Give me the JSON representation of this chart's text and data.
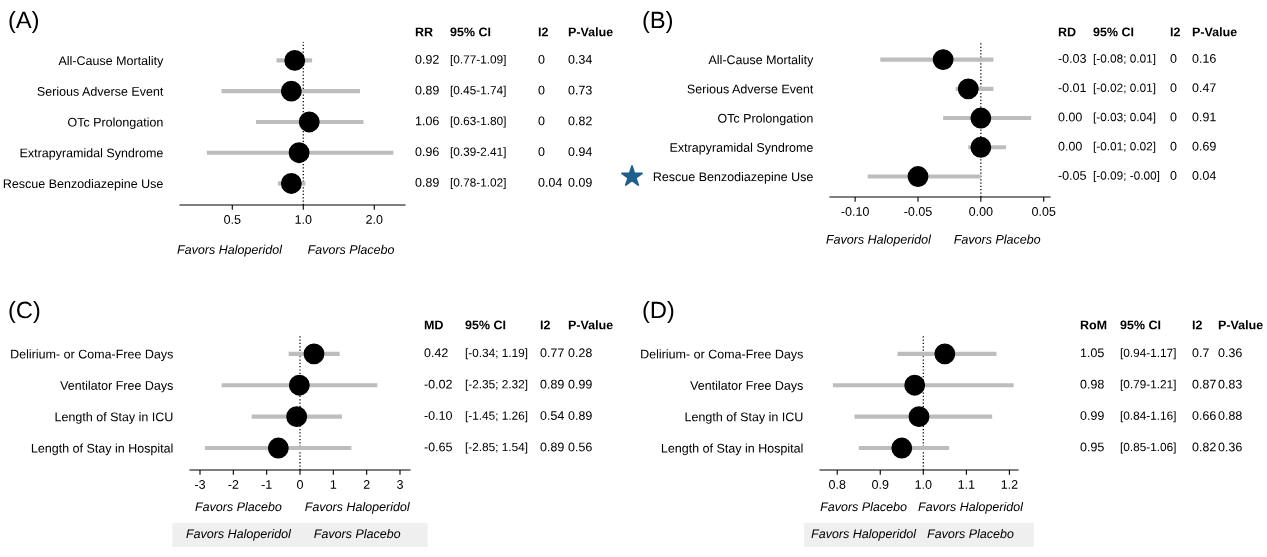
{
  "chart_data": [
    {
      "type": "scatter",
      "title": "(A)",
      "orientation": "horizontal",
      "log": "x",
      "marker": "circle",
      "color": "#000000",
      "categories": [
        "All-Cause Mortality",
        "Serious Adverse Event",
        "OTc Prolongation",
        "Extrapyramidal Syndrome",
        "Rescue Benzodiazepine Use"
      ],
      "values": [
        0.92,
        0.89,
        1.06,
        0.96,
        0.89
      ],
      "errors": [
        [
          0.77,
          1.09
        ],
        [
          0.45,
          1.74
        ],
        [
          0.63,
          1.8
        ],
        [
          0.39,
          2.41
        ],
        [
          0.78,
          1.02
        ]
      ],
      "value_labels": [
        "0.92",
        "0.89",
        "1.06",
        "0.96",
        "0.89"
      ],
      "xlim": [
        0.3,
        2.7
      ],
      "xticks": [
        0.5,
        {
          "value": 1,
          "label": "1.0"
        },
        {
          "value": 2,
          "label": "2.0"
        }
      ],
      "ref_lines": [
        {
          "axis": "x",
          "value": 1,
          "line_style": "dotted",
          "color": "#000000"
        }
      ],
      "annotations": [
        "RR",
        "95% CI",
        "I2",
        "P-Value",
        "[0.77-1.09]",
        "0",
        "0.34",
        "[0.45-1.74]",
        "0",
        "0.73",
        "[0.63-1.80]",
        "0",
        "0.82",
        "[0.39-2.41]",
        "0",
        "0.94",
        "[0.78-1.02]",
        "0.04",
        "0.09",
        "Favors Haloperidol",
        "Favors Placebo"
      ]
    },
    {
      "type": "scatter",
      "title": "(B)",
      "orientation": "horizontal",
      "marker": "circle",
      "color": "#000000",
      "categories": [
        "All-Cause Mortality",
        "Serious Adverse Event",
        "OTc Prolongation",
        "Extrapyramidal Syndrome",
        "Rescue Benzodiazepine Use"
      ],
      "values": [
        -0.03,
        -0.01,
        0.0,
        0.0,
        -0.05
      ],
      "errors": [
        [
          -0.08,
          0.01
        ],
        [
          -0.02,
          0.01
        ],
        [
          -0.03,
          0.04
        ],
        [
          -0.01,
          0.02
        ],
        [
          -0.09,
          -0.0
        ]
      ],
      "value_labels": [
        "-0.03",
        "-0.01",
        "0.00",
        "0.00",
        "-0.05"
      ],
      "xlim": [
        -0.12,
        0.055
      ],
      "xticks": [
        {
          "value": -0.1,
          "label": "-0.10"
        },
        {
          "value": -0.05,
          "label": "-0.05"
        },
        {
          "value": 0,
          "label": "0.00"
        },
        {
          "value": 0.05,
          "label": "0.05"
        }
      ],
      "ref_lines": [
        {
          "axis": "x",
          "value": 0,
          "line_style": "dotted",
          "color": "#000000"
        }
      ],
      "annotations": [
        "RD",
        "95% CI",
        "I2",
        "P-Value",
        "[-0.08; 0.01]",
        "0",
        "0.16",
        "[-0.02; 0.01]",
        "0",
        "0.47",
        "[-0.03; 0.04]",
        "0",
        "0.91",
        "[-0.01; 0.02]",
        "0",
        "0.69",
        "[-0.09; -0.00]",
        "0",
        "0.04",
        "Favors Haloperidol",
        "Favors Placebo"
      ]
    },
    {
      "type": "scatter",
      "title": "(C)",
      "orientation": "horizontal",
      "marker": "circle",
      "color": "#000000",
      "categories": [
        "Delirium- or Coma-Free Days",
        "Ventilator Free Days",
        "Length of Stay in ICU",
        "Length of Stay in Hospital"
      ],
      "values": [
        0.42,
        -0.02,
        -0.1,
        -0.65
      ],
      "errors": [
        [
          -0.34,
          1.19
        ],
        [
          -2.35,
          2.32
        ],
        [
          -1.45,
          1.26
        ],
        [
          -2.85,
          1.54
        ]
      ],
      "value_labels": [
        "0.42",
        "-0.02",
        "-0.10",
        "-0.65"
      ],
      "xlim": [
        -3.3,
        3.3
      ],
      "xticks": [
        -3,
        -2,
        -1,
        0,
        1,
        2,
        3
      ],
      "ref_lines": [
        {
          "axis": "x",
          "value": 0,
          "line_style": "dotted",
          "color": "#000000"
        }
      ],
      "annotations": [
        "MD",
        "95% CI",
        "I2",
        "P-Value",
        "[-0.34; 1.19]",
        "0.77",
        "0.28",
        "[-2.35; 2.32]",
        "0.89",
        "0.99",
        "[-1.45; 1.26]",
        "0.54",
        "0.89",
        "[-2.85; 1.54]",
        "0.89",
        "0.56",
        "Favors Placebo",
        "Favors Haloperidol",
        "Favors Haloperidol",
        "Favors Placebo"
      ]
    },
    {
      "type": "scatter",
      "title": "(D)",
      "orientation": "horizontal",
      "marker": "circle",
      "color": "#000000",
      "categories": [
        "Delirium- or Coma-Free Days",
        "Ventilator Free Days",
        "Length of Stay in ICU",
        "Length of Stay in Hospital"
      ],
      "values": [
        1.05,
        0.98,
        0.99,
        0.95
      ],
      "errors": [
        [
          0.94,
          1.17
        ],
        [
          0.79,
          1.21
        ],
        [
          0.84,
          1.16
        ],
        [
          0.85,
          1.06
        ]
      ],
      "value_labels": [
        "1.05",
        "0.98",
        "0.99",
        "0.95"
      ],
      "xlim": [
        0.76,
        1.22
      ],
      "xticks": [
        0.8,
        0.9,
        {
          "value": 1,
          "label": "1.0"
        },
        1.1,
        1.2
      ],
      "ref_lines": [
        {
          "axis": "x",
          "value": 1,
          "line_style": "dotted",
          "color": "#000000"
        }
      ],
      "annotations": [
        "RoM",
        "95% CI",
        "I2",
        "P-Value",
        "[0.94-1.17]",
        "0.7",
        "0.36",
        "[0.79-1.21]",
        "0.87",
        "0.83",
        "[0.84-1.16]",
        "0.66",
        "0.88",
        "[0.85-1.06]",
        "0.82",
        "0.36",
        "Favors Placebo",
        "Favors Haloperidol",
        "Favors Haloperidol",
        "Favors Placebo"
      ]
    }
  ]
}
